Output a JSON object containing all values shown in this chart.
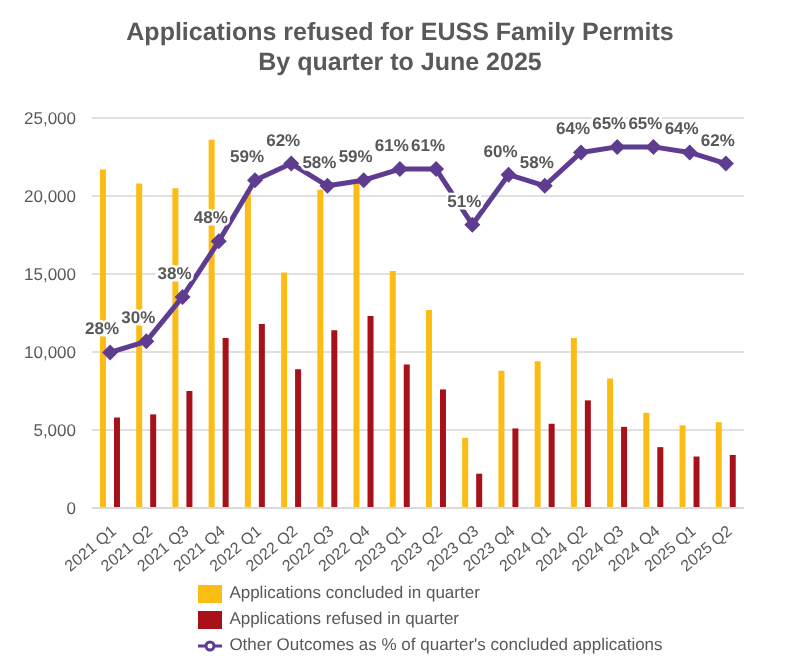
{
  "chart_data": {
    "type": "bar",
    "title": "Applications refused for EUSS Family Permits",
    "subtitle": "By quarter to June 2025",
    "categories": [
      "2021 Q1",
      "2021 Q2",
      "2021 Q3",
      "2021 Q4",
      "2022 Q1",
      "2022 Q2",
      "2022 Q3",
      "2022 Q4",
      "2023 Q1",
      "2023 Q2",
      "2023 Q3",
      "2023 Q4",
      "2024 Q1",
      "2024 Q2",
      "2024 Q3",
      "2024 Q4",
      "2025 Q1",
      "2025 Q2"
    ],
    "series": [
      {
        "name": "Applications concluded in quarter",
        "color": "#fbbc14",
        "values": [
          21700,
          20800,
          20500,
          23600,
          20300,
          15100,
          20400,
          20900,
          15200,
          12700,
          4500,
          8800,
          9400,
          10900,
          8300,
          6100,
          5300,
          5500
        ]
      },
      {
        "name": "Applications refused in quarter",
        "color": "#a8101a",
        "values": [
          5800,
          6000,
          7500,
          10900,
          11800,
          8900,
          11400,
          12300,
          9200,
          7600,
          2200,
          5100,
          5400,
          6900,
          5200,
          3900,
          3300,
          3400
        ]
      },
      {
        "name": "Other Outcomes as % of quarter's concluded applications",
        "type": "line",
        "axis": "y2",
        "color": "#5e3c8f",
        "marker": "diamond",
        "values": [
          28,
          30,
          38,
          48,
          59,
          62,
          58,
          59,
          61,
          61,
          51,
          60,
          58,
          64,
          65,
          65,
          64,
          62
        ],
        "value_labels": [
          "28%",
          "30%",
          "38%",
          "48%",
          "59%",
          "62%",
          "58%",
          "59%",
          "61%",
          "61%",
          "51%",
          "60%",
          "58%",
          "64%",
          "65%",
          "65%",
          "64%",
          "62%"
        ]
      }
    ],
    "ylim": [
      0,
      25000
    ],
    "yticks": [
      0,
      {
        "value": 5000,
        "label": "5,000"
      },
      {
        "value": 10000,
        "label": "10,000"
      },
      {
        "value": 15000,
        "label": "15,000"
      },
      {
        "value": 20000,
        "label": "20,000"
      },
      {
        "value": 25000,
        "label": "25,000"
      }
    ],
    "grid": "y",
    "legend": "bottom"
  }
}
